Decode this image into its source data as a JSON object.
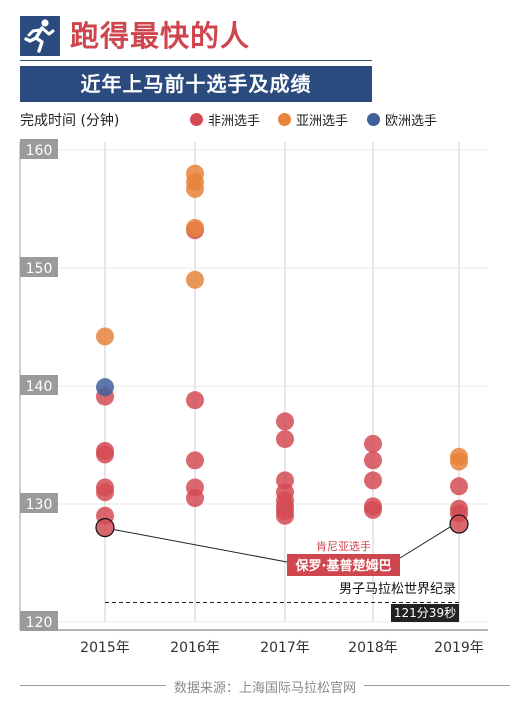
{
  "header": {
    "logo_icon": "runner-icon",
    "title": "跑得最快的人",
    "subtitle": "近年上马前十选手及成绩"
  },
  "legend": [
    {
      "label": "非洲选手",
      "color": "#d44b55"
    },
    {
      "label": "亚洲选手",
      "color": "#e8843c"
    },
    {
      "label": "欧洲选手",
      "color": "#40609c"
    }
  ],
  "source": "数据来源：上海国际马拉松官网",
  "chart_data": {
    "type": "scatter",
    "ylabel": "完成时间 (分钟)",
    "ylim": [
      120,
      160
    ],
    "yticks": [
      "120",
      "130",
      "140",
      "150",
      "160"
    ],
    "categories": [
      "2015年",
      "2016年",
      "2017年",
      "2018年",
      "2019年"
    ],
    "series": [
      {
        "name": "非洲选手",
        "color": "#d44b55",
        "points": [
          {
            "x": "2015年",
            "y": 128.0
          },
          {
            "x": "2015年",
            "y": 129.0
          },
          {
            "x": "2015年",
            "y": 131.0
          },
          {
            "x": "2015年",
            "y": 131.4
          },
          {
            "x": "2015年",
            "y": 134.2
          },
          {
            "x": "2015年",
            "y": 134.5
          },
          {
            "x": "2015年",
            "y": 139.1
          },
          {
            "x": "2016年",
            "y": 130.5
          },
          {
            "x": "2016年",
            "y": 131.4
          },
          {
            "x": "2016年",
            "y": 133.7
          },
          {
            "x": "2016年",
            "y": 138.8
          },
          {
            "x": "2016年",
            "y": 153.2
          },
          {
            "x": "2017年",
            "y": 129.0
          },
          {
            "x": "2017年",
            "y": 129.4
          },
          {
            "x": "2017年",
            "y": 129.8
          },
          {
            "x": "2017年",
            "y": 130.3
          },
          {
            "x": "2017年",
            "y": 131.0
          },
          {
            "x": "2017年",
            "y": 132.0
          },
          {
            "x": "2017年",
            "y": 135.5
          },
          {
            "x": "2017年",
            "y": 137.0
          },
          {
            "x": "2018年",
            "y": 129.5
          },
          {
            "x": "2018年",
            "y": 129.8
          },
          {
            "x": "2018年",
            "y": 132.0
          },
          {
            "x": "2018年",
            "y": 133.7
          },
          {
            "x": "2018年",
            "y": 135.1
          },
          {
            "x": "2019年",
            "y": 128.3
          },
          {
            "x": "2019年",
            "y": 129.2
          },
          {
            "x": "2019年",
            "y": 129.6
          },
          {
            "x": "2019年",
            "y": 131.5
          }
        ]
      },
      {
        "name": "亚洲选手",
        "color": "#e8843c",
        "points": [
          {
            "x": "2015年",
            "y": 144.2
          },
          {
            "x": "2016年",
            "y": 149.0
          },
          {
            "x": "2016年",
            "y": 153.4
          },
          {
            "x": "2016年",
            "y": 156.7
          },
          {
            "x": "2016年",
            "y": 157.3
          },
          {
            "x": "2016年",
            "y": 158.0
          },
          {
            "x": "2019年",
            "y": 133.6
          },
          {
            "x": "2019年",
            "y": 134.0
          }
        ]
      },
      {
        "name": "欧洲选手",
        "color": "#40609c",
        "points": [
          {
            "x": "2015年",
            "y": 139.9
          }
        ]
      }
    ],
    "highlighted": [
      {
        "x": "2015年",
        "y": 128.0
      },
      {
        "x": "2019年",
        "y": 128.3
      }
    ],
    "annotation": {
      "small_label": "肯尼亚选手",
      "label": "保罗·基普楚姆巴"
    },
    "reference_line": {
      "y": 121.65,
      "label": "男子马拉松世界纪录",
      "value_label": "121分39秒"
    }
  }
}
